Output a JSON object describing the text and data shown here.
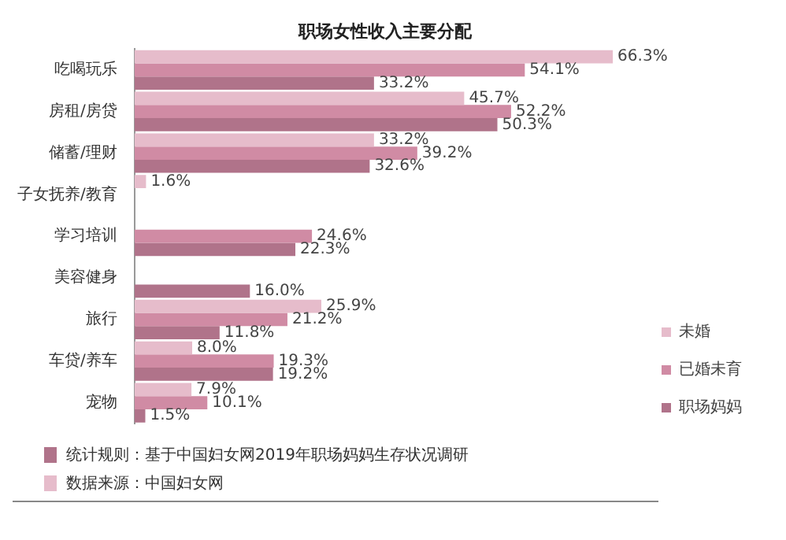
{
  "chart_data": {
    "type": "bar",
    "orientation": "horizontal",
    "title": "职场女性收入主要分配",
    "categories": [
      "吃喝玩乐",
      "房租/房贷",
      "储蓄/理财",
      "子女抚养/教育",
      "学习培训",
      "美容健身",
      "旅行",
      "车贷/养车",
      "宠物"
    ],
    "series": [
      {
        "name": "未婚",
        "color": "#e6bccb",
        "values": [
          66.3,
          45.7,
          33.2,
          1.6,
          null,
          null,
          25.9,
          8.0,
          7.9
        ],
        "value_labels": [
          "66.3%",
          "45.7%",
          "33.2%",
          "1.6%",
          null,
          null,
          "25.9%",
          "8.0%",
          "7.9%"
        ]
      },
      {
        "name": "已婚未育",
        "color": "#d08ba4",
        "values": [
          54.1,
          52.2,
          39.2,
          null,
          24.6,
          null,
          21.2,
          19.3,
          10.1
        ],
        "value_labels": [
          "54.1%",
          "52.2%",
          "39.2%",
          null,
          "24.6%",
          null,
          "21.2%",
          "19.3%",
          "10.1%"
        ]
      },
      {
        "name": "职场妈妈",
        "color": "#b0738a",
        "values": [
          33.2,
          50.3,
          32.6,
          null,
          22.3,
          16.0,
          11.8,
          19.2,
          1.5
        ],
        "value_labels": [
          "33.2%",
          "50.3%",
          "32.6%",
          null,
          "22.3%",
          "16.0%",
          "11.8%",
          "19.2%",
          "1.5%"
        ]
      }
    ],
    "legend": "bottom right",
    "grid": false,
    "tick_labels": "y",
    "annotations": [
      "统计规则：基于中国妇女网2019年职场妈妈生存状况调研",
      "数据来源：中国妇女网"
    ]
  }
}
